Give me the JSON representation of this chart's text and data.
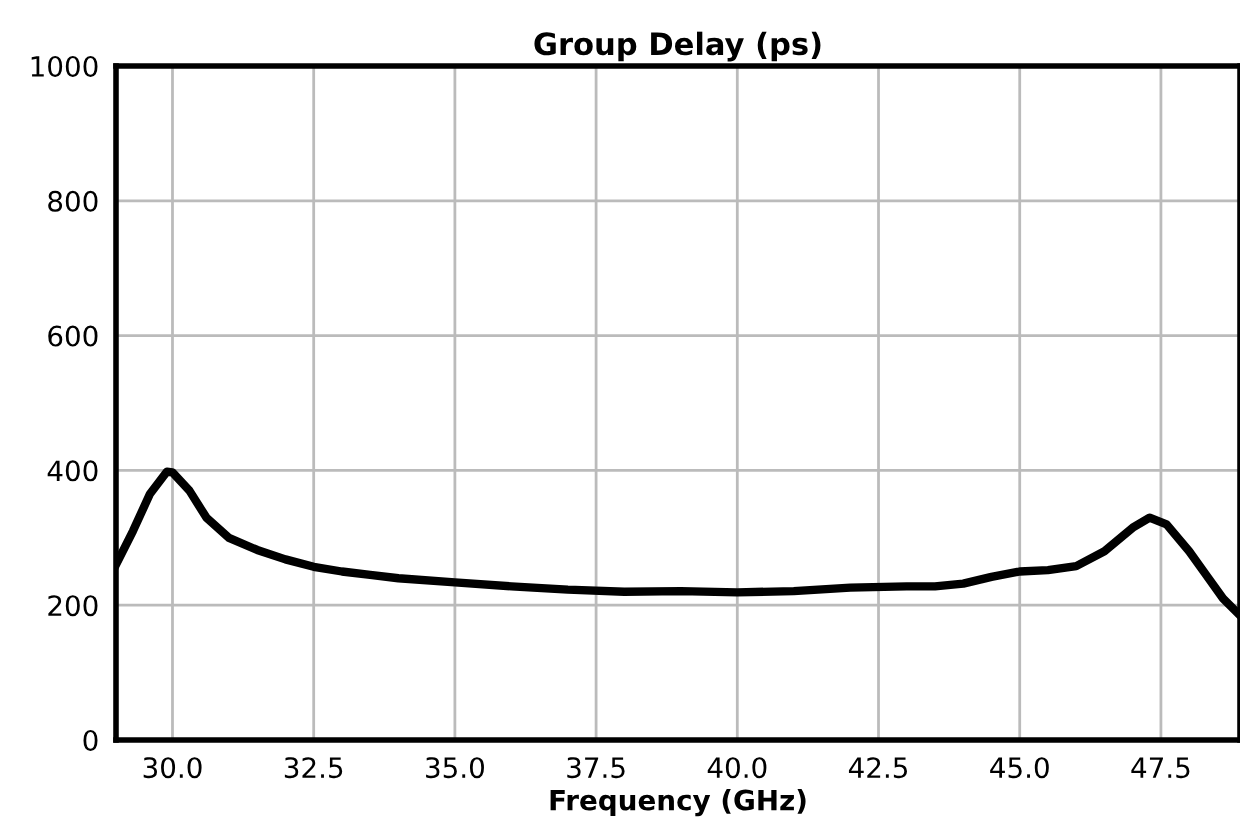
{
  "chart_data": {
    "type": "line",
    "title": "Group Delay (ps)",
    "xlabel": "Frequency (GHz)",
    "x": [
      29.0,
      29.3,
      29.6,
      29.9,
      30.0,
      30.3,
      30.6,
      31.0,
      31.5,
      32.0,
      32.5,
      33.0,
      33.5,
      34.0,
      35.0,
      36.0,
      37.0,
      38.0,
      39.0,
      40.0,
      41.0,
      42.0,
      43.0,
      43.5,
      44.0,
      44.5,
      45.0,
      45.5,
      46.0,
      46.5,
      47.0,
      47.3,
      47.6,
      48.0,
      48.3,
      48.6,
      48.9
    ],
    "series": [
      {
        "color": "#000000",
        "values": [
          260,
          310,
          365,
          398,
          397,
          370,
          330,
          300,
          282,
          268,
          257,
          250,
          245,
          240,
          234,
          228,
          223,
          220,
          221,
          219,
          221,
          226,
          228,
          228,
          232,
          242,
          250,
          252,
          258,
          280,
          315,
          330,
          320,
          280,
          245,
          210,
          185
        ]
      }
    ],
    "xlim": [
      29.0,
      48.9
    ],
    "ylim": [
      0,
      1000
    ],
    "xticks": [
      {
        "value": 30,
        "label": "30.0"
      },
      {
        "value": 32.5,
        "label": "32.5"
      },
      {
        "value": 35,
        "label": "35.0"
      },
      {
        "value": 37.5,
        "label": "37.5"
      },
      {
        "value": 40,
        "label": "40.0"
      },
      {
        "value": 42.5,
        "label": "42.5"
      },
      {
        "value": 45,
        "label": "45.0"
      },
      {
        "value": 47.5,
        "label": "47.5"
      }
    ],
    "yticks": [
      0,
      200,
      400,
      600,
      800,
      1000
    ],
    "grid": true,
    "legend": false,
    "marker": "none",
    "line_style": "solid"
  }
}
